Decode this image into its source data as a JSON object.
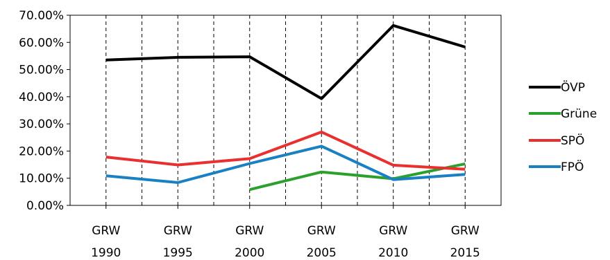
{
  "chart_data": {
    "type": "line",
    "categories": [
      [
        "GRW",
        "1990"
      ],
      [
        "GRW",
        "1995"
      ],
      [
        "GRW",
        "2000"
      ],
      [
        "GRW",
        "2005"
      ],
      [
        "GRW",
        "2010"
      ],
      [
        "GRW",
        "2015"
      ]
    ],
    "y_ticks": [
      "0.00%",
      "10.00%",
      "20.00%",
      "30.00%",
      "40.00%",
      "50.00%",
      "60.00%",
      "70.00%"
    ],
    "ylim": [
      0,
      70
    ],
    "y_unit": "%",
    "grid": {
      "vertical": "dashed",
      "horizontal": false
    },
    "legend_position": "right",
    "series": [
      {
        "name": "ÖVP",
        "color": "#000000",
        "values": [
          53.5,
          54.5,
          54.7,
          39.3,
          66.2,
          58.3
        ]
      },
      {
        "name": "Grüne",
        "color": "#2ca02c",
        "values": [
          null,
          null,
          5.8,
          12.3,
          9.8,
          15.3
        ]
      },
      {
        "name": "SPÖ",
        "color": "#e8302f",
        "values": [
          17.8,
          14.9,
          17.2,
          27.0,
          14.8,
          13.3
        ]
      },
      {
        "name": "FPÖ",
        "color": "#1a80c4",
        "values": [
          10.9,
          8.4,
          15.4,
          21.8,
          9.5,
          11.4
        ]
      }
    ]
  }
}
